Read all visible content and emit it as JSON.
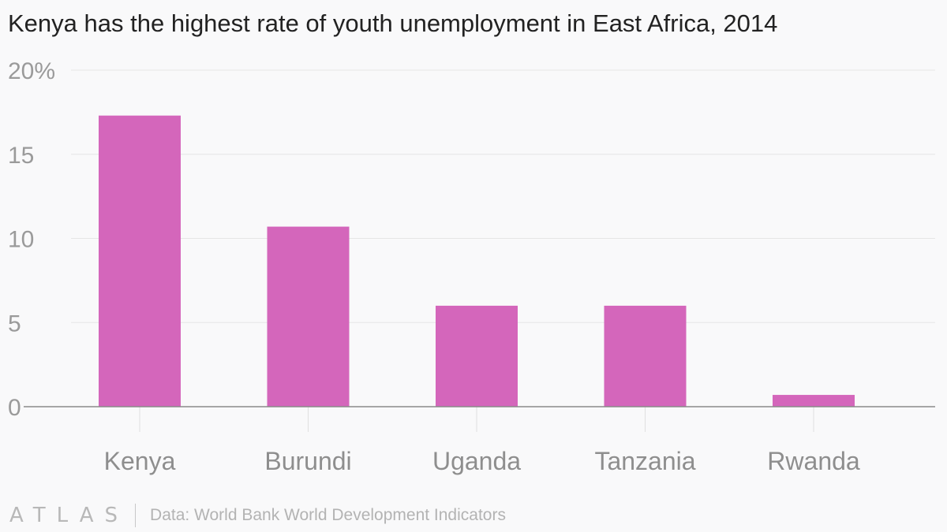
{
  "chart_data": {
    "type": "bar",
    "title": "Kenya has the highest rate of youth unemployment in East Africa, 2014",
    "categories": [
      "Kenya",
      "Burundi",
      "Uganda",
      "Tanzania",
      "Rwanda"
    ],
    "values": [
      17.3,
      10.7,
      6.0,
      6.0,
      0.7
    ],
    "ylim": [
      0,
      20
    ],
    "yticks": [
      0,
      5,
      10,
      15,
      20
    ],
    "ytick_labels": [
      "0",
      "5",
      "10",
      "15",
      "20%"
    ],
    "xlabel": "",
    "ylabel": "",
    "bar_color": "#d466bb",
    "grid": true
  },
  "footer": {
    "logo": "ATLAS",
    "source": "Data: World Bank World Development Indicators"
  }
}
